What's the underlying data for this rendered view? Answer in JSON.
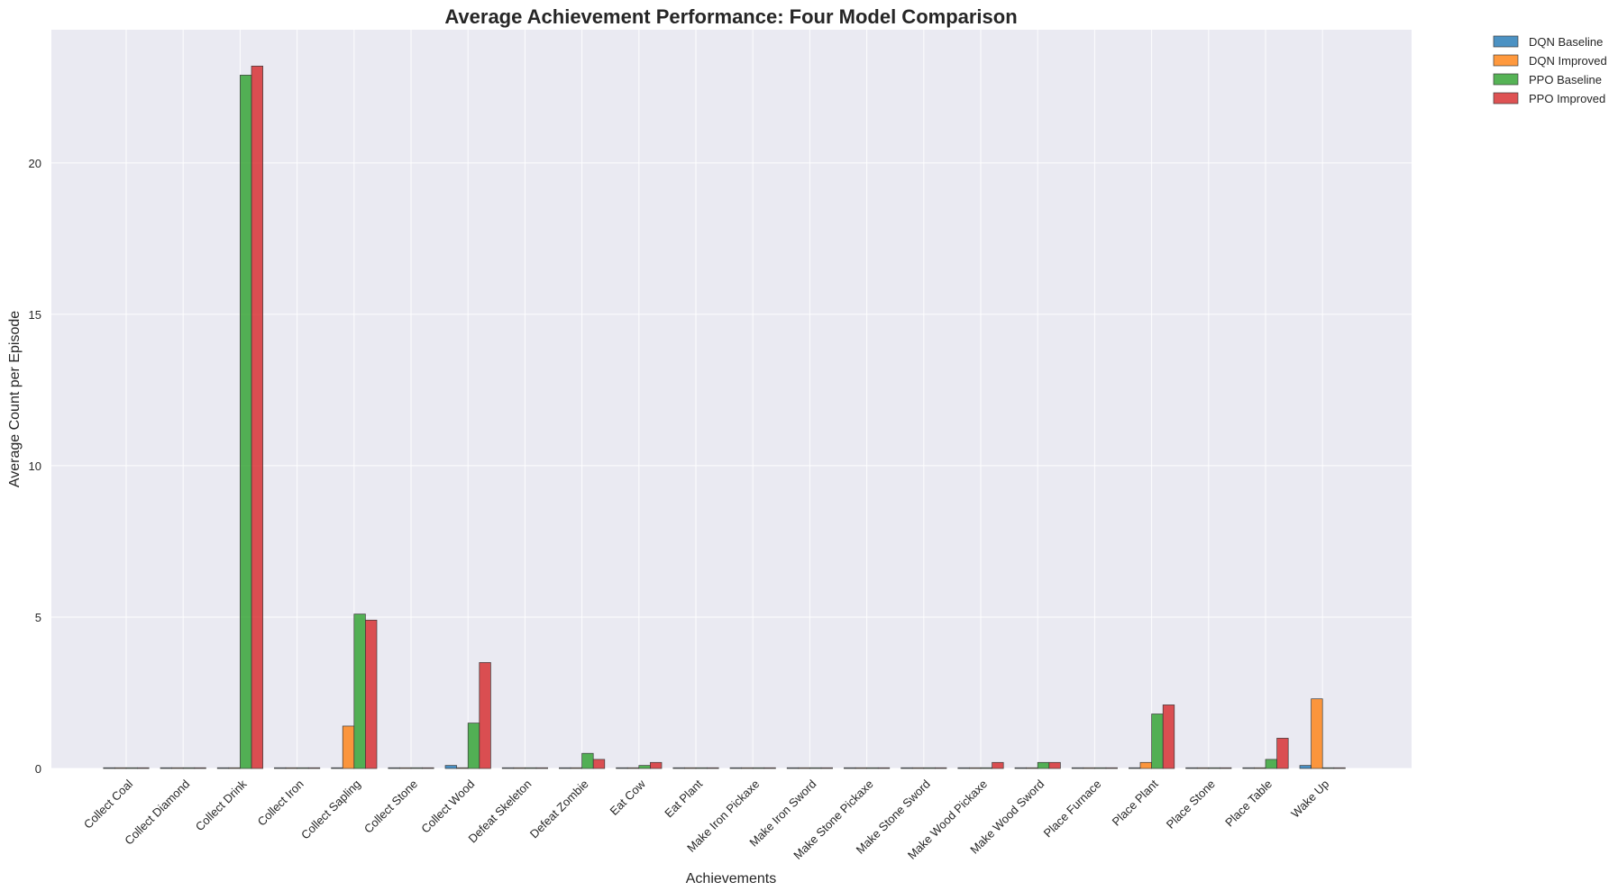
{
  "chart_data": {
    "type": "bar",
    "title": "Average Achievement Performance: Four Model Comparison",
    "xlabel": "Achievements",
    "ylabel": "Average Count per Episode",
    "ylim": [
      0,
      24.4
    ],
    "yticks": [
      0,
      5,
      10,
      15,
      20
    ],
    "grid": true,
    "legend_position": "outside-top-right",
    "categories": [
      "Collect Coal",
      "Collect Diamond",
      "Collect Drink",
      "Collect Iron",
      "Collect Sapling",
      "Collect Stone",
      "Collect Wood",
      "Defeat Skeleton",
      "Defeat Zombie",
      "Eat Cow",
      "Eat Plant",
      "Make Iron Pickaxe",
      "Make Iron Sword",
      "Make Stone Pickaxe",
      "Make Stone Sword",
      "Make Wood Pickaxe",
      "Make Wood Sword",
      "Place Furnace",
      "Place Plant",
      "Place Stone",
      "Place Table",
      "Wake Up"
    ],
    "series": [
      {
        "name": "DQN Baseline",
        "color": "#1f77b4",
        "values": [
          0,
          0,
          0,
          0,
          0,
          0,
          0.1,
          0,
          0,
          0,
          0,
          0,
          0,
          0,
          0,
          0,
          0,
          0,
          0,
          0,
          0,
          0.1
        ]
      },
      {
        "name": "DQN Improved",
        "color": "#ff7f0e",
        "values": [
          0,
          0,
          0,
          0,
          1.4,
          0,
          0,
          0,
          0,
          0,
          0,
          0,
          0,
          0,
          0,
          0,
          0,
          0,
          0.2,
          0,
          0,
          2.3
        ]
      },
      {
        "name": "PPO Baseline",
        "color": "#2ca02c",
        "values": [
          0,
          0,
          22.9,
          0,
          5.1,
          0,
          1.5,
          0,
          0.5,
          0.1,
          0,
          0,
          0,
          0,
          0,
          0,
          0.2,
          0,
          1.8,
          0,
          0.3,
          0
        ]
      },
      {
        "name": "PPO Improved",
        "color": "#d62728",
        "values": [
          0,
          0,
          23.2,
          0,
          4.9,
          0,
          3.5,
          0,
          0.3,
          0.2,
          0,
          0,
          0,
          0,
          0,
          0.2,
          0.2,
          0,
          2.1,
          0,
          1.0,
          0
        ]
      }
    ]
  },
  "colors": {
    "plot_background": "#eaeaf2",
    "grid": "#ffffff",
    "text": "#262626"
  }
}
